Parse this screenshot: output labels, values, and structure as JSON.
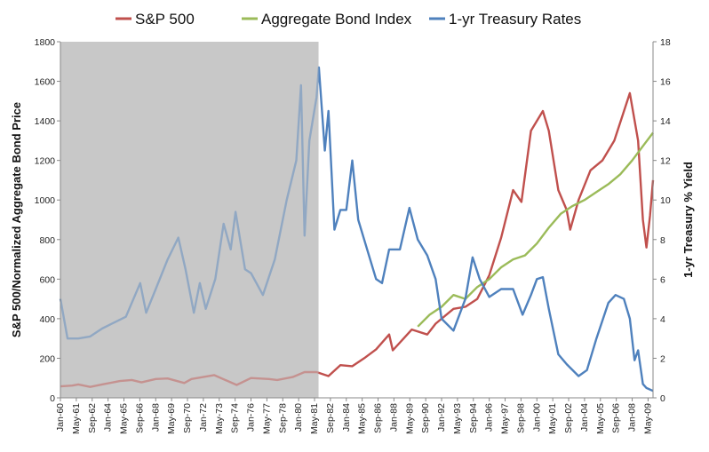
{
  "chart_data": {
    "type": "line",
    "title": "",
    "ylabel_left": "S&P 500/Normalized Aggregate Bond Price",
    "ylabel_right": "1-yr Treasury % Yield",
    "ylim_left": [
      0,
      1800
    ],
    "ylim_right": [
      0,
      18
    ],
    "yticks_left": [
      0,
      200,
      400,
      600,
      800,
      1000,
      1200,
      1400,
      1600,
      1800
    ],
    "yticks_right": [
      0,
      2,
      4,
      6,
      8,
      10,
      12,
      14,
      16,
      18
    ],
    "x_start": 1960.0,
    "x_end": 2009.75,
    "x_tick_labels": [
      "Jan-60",
      "May-61",
      "Sep-62",
      "Jan-64",
      "May-65",
      "Sep-66",
      "Jan-68",
      "May-69",
      "Sep-70",
      "Jan-72",
      "May-73",
      "Sep-74",
      "Jan-76",
      "May-77",
      "Sep-78",
      "Jan-80",
      "May-81",
      "Sep-82",
      "Jan-84",
      "May-85",
      "Sep-86",
      "Jan-88",
      "May-89",
      "Sep-90",
      "Jan-92",
      "May-93",
      "Sep-94",
      "Jan-96",
      "May-97",
      "Sep-98",
      "Jan-00",
      "May-01",
      "Sep-02",
      "Jan-04",
      "May-05",
      "Sep-06",
      "Jan-08",
      "May-09"
    ],
    "shaded_region": {
      "from": 1960.0,
      "to": 1981.67,
      "color": "#c8c8c8"
    },
    "legend_position": "top",
    "grid": false,
    "series": [
      {
        "name": "S&P 500",
        "axis": "left",
        "color": "#c0504d",
        "points": [
          [
            1960.0,
            58
          ],
          [
            1961.0,
            62
          ],
          [
            1961.5,
            68
          ],
          [
            1962.5,
            55
          ],
          [
            1963.5,
            68
          ],
          [
            1965.0,
            85
          ],
          [
            1966.0,
            90
          ],
          [
            1966.8,
            78
          ],
          [
            1968.0,
            95
          ],
          [
            1969.0,
            98
          ],
          [
            1970.4,
            75
          ],
          [
            1971.0,
            95
          ],
          [
            1972.9,
            115
          ],
          [
            1974.8,
            65
          ],
          [
            1976.0,
            100
          ],
          [
            1977.5,
            95
          ],
          [
            1978.2,
            90
          ],
          [
            1979.5,
            105
          ],
          [
            1980.5,
            130
          ],
          [
            1981.5,
            130
          ],
          [
            1982.5,
            110
          ],
          [
            1983.5,
            165
          ],
          [
            1984.5,
            160
          ],
          [
            1985.5,
            200
          ],
          [
            1986.5,
            245
          ],
          [
            1987.6,
            320
          ],
          [
            1987.9,
            240
          ],
          [
            1989.5,
            345
          ],
          [
            1990.8,
            320
          ],
          [
            1991.5,
            375
          ],
          [
            1993.0,
            450
          ],
          [
            1994.0,
            460
          ],
          [
            1995.0,
            500
          ],
          [
            1996.0,
            620
          ],
          [
            1997.0,
            810
          ],
          [
            1998.0,
            1050
          ],
          [
            1998.7,
            990
          ],
          [
            1999.5,
            1350
          ],
          [
            2000.5,
            1450
          ],
          [
            2001.0,
            1350
          ],
          [
            2001.8,
            1050
          ],
          [
            2002.5,
            950
          ],
          [
            2002.8,
            850
          ],
          [
            2003.5,
            1000
          ],
          [
            2004.5,
            1150
          ],
          [
            2005.5,
            1200
          ],
          [
            2006.5,
            1300
          ],
          [
            2007.8,
            1540
          ],
          [
            2008.5,
            1300
          ],
          [
            2008.9,
            900
          ],
          [
            2009.2,
            760
          ],
          [
            2009.5,
            920
          ],
          [
            2009.75,
            1100
          ]
        ]
      },
      {
        "name": "Aggregate Bond Index",
        "axis": "left",
        "color": "#9bbb59",
        "points": [
          [
            1990.0,
            360
          ],
          [
            1991.0,
            420
          ],
          [
            1992.0,
            460
          ],
          [
            1993.0,
            520
          ],
          [
            1994.0,
            500
          ],
          [
            1995.0,
            560
          ],
          [
            1996.0,
            600
          ],
          [
            1997.0,
            660
          ],
          [
            1998.0,
            700
          ],
          [
            1999.0,
            720
          ],
          [
            2000.0,
            780
          ],
          [
            2001.0,
            860
          ],
          [
            2002.0,
            930
          ],
          [
            2003.0,
            970
          ],
          [
            2004.0,
            1000
          ],
          [
            2005.0,
            1040
          ],
          [
            2006.0,
            1080
          ],
          [
            2007.0,
            1130
          ],
          [
            2008.0,
            1200
          ],
          [
            2009.0,
            1280
          ],
          [
            2009.75,
            1340
          ]
        ]
      },
      {
        "name": "1-yr Treasury Rates",
        "axis": "right",
        "color": "#4f81bd",
        "points": [
          [
            1960.0,
            5.0
          ],
          [
            1960.6,
            3.0
          ],
          [
            1961.5,
            3.0
          ],
          [
            1962.5,
            3.1
          ],
          [
            1963.5,
            3.5
          ],
          [
            1964.5,
            3.8
          ],
          [
            1965.5,
            4.1
          ],
          [
            1966.7,
            5.8
          ],
          [
            1967.2,
            4.3
          ],
          [
            1968.0,
            5.5
          ],
          [
            1969.0,
            7.0
          ],
          [
            1969.9,
            8.1
          ],
          [
            1970.5,
            6.5
          ],
          [
            1971.2,
            4.3
          ],
          [
            1971.7,
            5.8
          ],
          [
            1972.2,
            4.5
          ],
          [
            1973.0,
            6.0
          ],
          [
            1973.7,
            8.8
          ],
          [
            1974.3,
            7.5
          ],
          [
            1974.7,
            9.4
          ],
          [
            1975.5,
            6.5
          ],
          [
            1976.0,
            6.3
          ],
          [
            1977.0,
            5.2
          ],
          [
            1978.0,
            7.0
          ],
          [
            1979.0,
            10.0
          ],
          [
            1979.8,
            12.0
          ],
          [
            1980.2,
            15.8
          ],
          [
            1980.5,
            8.2
          ],
          [
            1980.9,
            13.0
          ],
          [
            1981.5,
            15.2
          ],
          [
            1981.7,
            16.7
          ],
          [
            1982.2,
            12.5
          ],
          [
            1982.5,
            14.5
          ],
          [
            1983.0,
            8.5
          ],
          [
            1983.5,
            9.5
          ],
          [
            1984.0,
            9.5
          ],
          [
            1984.5,
            12.0
          ],
          [
            1985.0,
            9.0
          ],
          [
            1985.5,
            8.0
          ],
          [
            1986.5,
            6.0
          ],
          [
            1987.0,
            5.8
          ],
          [
            1987.6,
            7.5
          ],
          [
            1988.5,
            7.5
          ],
          [
            1989.3,
            9.6
          ],
          [
            1990.0,
            8.0
          ],
          [
            1990.8,
            7.2
          ],
          [
            1991.5,
            6.0
          ],
          [
            1992.0,
            4.0
          ],
          [
            1993.0,
            3.4
          ],
          [
            1994.0,
            5.0
          ],
          [
            1994.6,
            7.1
          ],
          [
            1995.2,
            6.0
          ],
          [
            1996.0,
            5.1
          ],
          [
            1997.0,
            5.5
          ],
          [
            1998.0,
            5.5
          ],
          [
            1998.8,
            4.2
          ],
          [
            1999.5,
            5.2
          ],
          [
            2000.0,
            6.0
          ],
          [
            2000.5,
            6.1
          ],
          [
            2001.0,
            4.5
          ],
          [
            2001.8,
            2.2
          ],
          [
            2002.5,
            1.7
          ],
          [
            2003.5,
            1.1
          ],
          [
            2004.2,
            1.4
          ],
          [
            2005.0,
            3.0
          ],
          [
            2006.0,
            4.8
          ],
          [
            2006.6,
            5.2
          ],
          [
            2007.3,
            5.0
          ],
          [
            2007.8,
            4.0
          ],
          [
            2008.2,
            1.9
          ],
          [
            2008.5,
            2.4
          ],
          [
            2008.9,
            0.7
          ],
          [
            2009.2,
            0.5
          ],
          [
            2009.75,
            0.35
          ]
        ]
      }
    ]
  }
}
